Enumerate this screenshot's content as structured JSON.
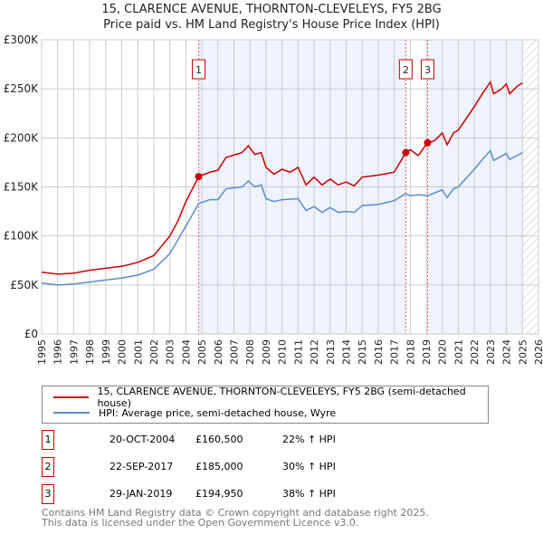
{
  "chart_data": {
    "type": "line",
    "title": "15, CLARENCE AVENUE, THORNTON-CLEVELEYS, FY5 2BG",
    "subtitle": "Price paid vs. HM Land Registry's House Price Index (HPI)",
    "xlim": [
      1995,
      2026
    ],
    "ylim": [
      0,
      300000
    ],
    "yticks": [
      {
        "v": 0,
        "label": "£0"
      },
      {
        "v": 50000,
        "label": "£50K"
      },
      {
        "v": 100000,
        "label": "£100K"
      },
      {
        "v": 150000,
        "label": "£150K"
      },
      {
        "v": 200000,
        "label": "£200K"
      },
      {
        "v": 250000,
        "label": "£250K"
      },
      {
        "v": 300000,
        "label": "£300K"
      }
    ],
    "xticks": [
      "1995",
      "1996",
      "1997",
      "1998",
      "1999",
      "2000",
      "2001",
      "2002",
      "2003",
      "2004",
      "2005",
      "2006",
      "2007",
      "2008",
      "2009",
      "2010",
      "2011",
      "2012",
      "2013",
      "2014",
      "2015",
      "2016",
      "2017",
      "2018",
      "2019",
      "2020",
      "2021",
      "2022",
      "2023",
      "2024",
      "2025",
      "2026"
    ],
    "grid": true,
    "series": [
      {
        "name": "15, CLARENCE AVENUE, THORNTON-CLEVELEYS, FY5 2BG (semi-detached house)",
        "color": "#cc0000",
        "points": [
          [
            1995,
            63000
          ],
          [
            1996,
            61000
          ],
          [
            1997,
            62000
          ],
          [
            1998,
            65000
          ],
          [
            1999,
            67000
          ],
          [
            2000,
            69000
          ],
          [
            2001,
            73000
          ],
          [
            2002,
            80000
          ],
          [
            2003,
            100000
          ],
          [
            2003.5,
            115000
          ],
          [
            2004,
            135000
          ],
          [
            2004.8,
            160500
          ],
          [
            2005.5,
            165000
          ],
          [
            2006,
            167000
          ],
          [
            2006.5,
            180000
          ],
          [
            2007.5,
            185000
          ],
          [
            2007.9,
            192000
          ],
          [
            2008.3,
            183000
          ],
          [
            2008.7,
            185000
          ],
          [
            2009,
            170000
          ],
          [
            2009.5,
            163000
          ],
          [
            2010,
            168000
          ],
          [
            2010.5,
            165000
          ],
          [
            2011,
            170000
          ],
          [
            2011.5,
            152000
          ],
          [
            2012,
            160000
          ],
          [
            2012.5,
            152000
          ],
          [
            2013,
            158000
          ],
          [
            2013.5,
            152000
          ],
          [
            2014,
            155000
          ],
          [
            2014.5,
            151000
          ],
          [
            2015,
            160000
          ],
          [
            2016,
            162000
          ],
          [
            2017,
            165000
          ],
          [
            2017.72,
            185000
          ],
          [
            2018,
            188000
          ],
          [
            2018.5,
            182000
          ],
          [
            2019.08,
            194950
          ],
          [
            2019.5,
            197000
          ],
          [
            2020,
            205000
          ],
          [
            2020.3,
            193000
          ],
          [
            2020.7,
            205000
          ],
          [
            2021,
            208000
          ],
          [
            2021.5,
            220000
          ],
          [
            2022,
            232000
          ],
          [
            2022.5,
            245000
          ],
          [
            2023,
            257000
          ],
          [
            2023.2,
            245000
          ],
          [
            2023.7,
            250000
          ],
          [
            2024,
            255000
          ],
          [
            2024.2,
            245000
          ],
          [
            2024.7,
            253000
          ],
          [
            2025,
            256000
          ]
        ]
      },
      {
        "name": "HPI: Average price, semi-detached house, Wyre",
        "color": "#5b8ccf",
        "points": [
          [
            1995,
            52000
          ],
          [
            1996,
            50000
          ],
          [
            1997,
            51000
          ],
          [
            1998,
            53000
          ],
          [
            1999,
            55000
          ],
          [
            2000,
            57000
          ],
          [
            2001,
            60000
          ],
          [
            2002,
            66000
          ],
          [
            2003,
            82000
          ],
          [
            2004,
            110000
          ],
          [
            2004.8,
            133000
          ],
          [
            2005.5,
            137000
          ],
          [
            2006,
            137000
          ],
          [
            2006.5,
            148000
          ],
          [
            2007.5,
            150000
          ],
          [
            2007.9,
            156000
          ],
          [
            2008.3,
            150000
          ],
          [
            2008.7,
            152000
          ],
          [
            2009,
            138000
          ],
          [
            2009.5,
            135000
          ],
          [
            2010,
            137000
          ],
          [
            2011,
            138000
          ],
          [
            2011.5,
            126000
          ],
          [
            2012,
            130000
          ],
          [
            2012.5,
            124000
          ],
          [
            2013,
            129000
          ],
          [
            2013.5,
            124000
          ],
          [
            2014,
            125000
          ],
          [
            2014.5,
            124000
          ],
          [
            2015,
            131000
          ],
          [
            2016,
            132000
          ],
          [
            2017,
            136000
          ],
          [
            2017.7,
            143000
          ],
          [
            2018,
            141000
          ],
          [
            2018.5,
            142000
          ],
          [
            2019.08,
            141000
          ],
          [
            2020,
            147000
          ],
          [
            2020.3,
            139000
          ],
          [
            2020.7,
            148000
          ],
          [
            2021,
            150000
          ],
          [
            2022,
            168000
          ],
          [
            2022.5,
            178000
          ],
          [
            2023,
            187000
          ],
          [
            2023.2,
            177000
          ],
          [
            2024,
            184000
          ],
          [
            2024.2,
            178000
          ],
          [
            2024.8,
            183000
          ],
          [
            2025,
            185000
          ]
        ]
      }
    ],
    "sales": [
      {
        "label": "1",
        "x": 2004.8,
        "value": 160500,
        "date": "20-OCT-2004",
        "price": "£160,500",
        "hpi": "22% ↑ HPI"
      },
      {
        "label": "2",
        "x": 2017.72,
        "value": 185000,
        "date": "22-SEP-2017",
        "price": "£185,000",
        "hpi": "30% ↑ HPI"
      },
      {
        "label": "3",
        "x": 2019.08,
        "value": 194950,
        "date": "29-JAN-2019",
        "price": "£194,950",
        "hpi": "38% ↑ HPI"
      }
    ],
    "shaded": [
      [
        2004.8,
        2017.72
      ],
      [
        2019.08,
        2025.0
      ]
    ],
    "hatched_from": 2025.0
  },
  "footer": [
    "Contains HM Land Registry data © Crown copyright and database right 2025.",
    "This data is licensed under the Open Government Licence v3.0."
  ],
  "colors": {
    "red": "#cc0000",
    "blue": "#5b8ccf",
    "shade": "#eef3fc"
  }
}
